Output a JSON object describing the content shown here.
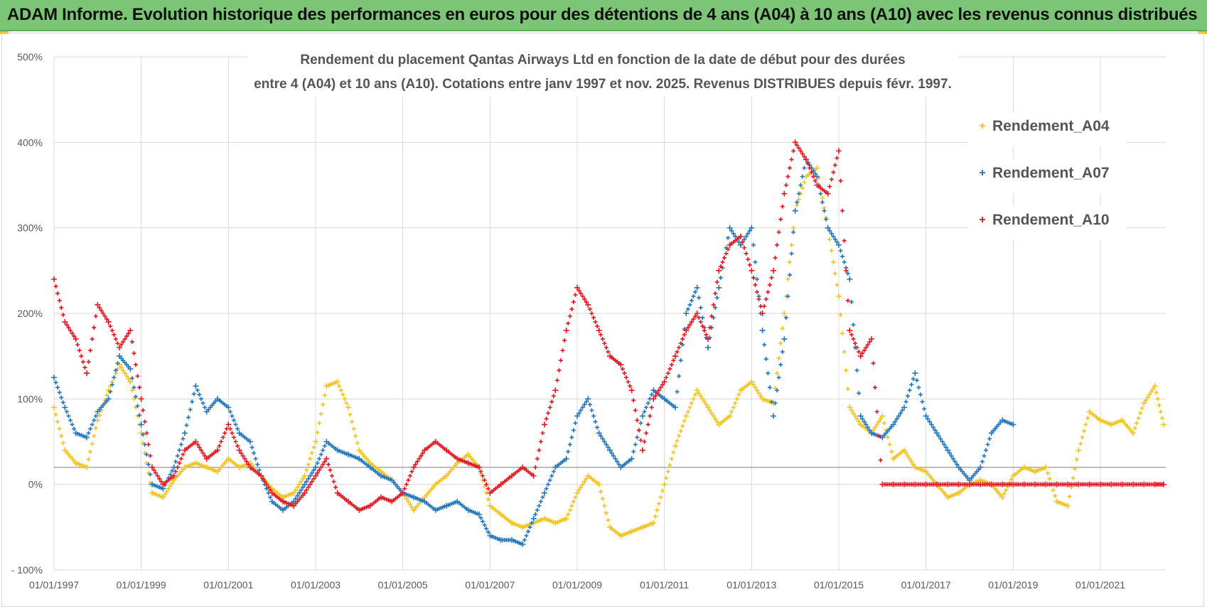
{
  "banner": {
    "title": "ADAM Informe. Evolution historique des performances en euros pour des détentions de 4 ans (A04) à 10 ans (A10) avec les revenus connus distribués"
  },
  "chart_data": {
    "type": "scatter",
    "title_line1": "Rendement du placement Qantas Airways Ltd en fonction de la date de début pour des durées",
    "title_line2": "entre 4 (A04) et 10 ans (A10). Cotations entre janv 1997 et nov. 2025. Revenus DISTRIBUES depuis févr. 1997.",
    "ylim": [
      -100,
      500
    ],
    "yticks": [
      -100,
      0,
      100,
      200,
      300,
      400,
      500
    ],
    "ytick_labels": [
      "- 100%",
      "0%",
      "100%",
      "200%",
      "300%",
      "400%",
      "500%"
    ],
    "xlim": [
      1997.0,
      2022.5
    ],
    "xticks": [
      1997,
      1999,
      2001,
      2003,
      2005,
      2007,
      2009,
      2011,
      2013,
      2015,
      2017,
      2019,
      2021
    ],
    "xtick_labels": [
      "01/01/1997",
      "01/01/1999",
      "01/01/2001",
      "01/01/2003",
      "01/01/2005",
      "01/01/2007",
      "01/01/2009",
      "01/01/2011",
      "01/01/2013",
      "01/01/2015",
      "01/01/2017",
      "01/01/2019",
      "01/01/2021"
    ],
    "reference_line": 20,
    "grid": "both",
    "legend_position": "top-right",
    "series": [
      {
        "name": "Rendement_A04",
        "color": "#f5c21b",
        "x": [
          1997.0,
          1997.25,
          1997.5,
          1997.75,
          1998.0,
          1998.25,
          1998.5,
          1998.75,
          1999.0,
          1999.25,
          1999.5,
          1999.75,
          2000.0,
          2000.25,
          2000.5,
          2000.75,
          2001.0,
          2001.25,
          2001.5,
          2001.75,
          2002.0,
          2002.25,
          2002.5,
          2002.75,
          2003.0,
          2003.25,
          2003.5,
          2003.75,
          2004.0,
          2004.25,
          2004.5,
          2004.75,
          2005.0,
          2005.25,
          2005.5,
          2005.75,
          2006.0,
          2006.25,
          2006.5,
          2006.75,
          2007.0,
          2007.25,
          2007.5,
          2007.75,
          2008.0,
          2008.25,
          2008.5,
          2008.75,
          2009.0,
          2009.25,
          2009.5,
          2009.75,
          2010.0,
          2010.25,
          2010.5,
          2010.75,
          2011.0,
          2011.25,
          2011.5,
          2011.75,
          2012.0,
          2012.25,
          2012.5,
          2012.75,
          2013.0,
          2013.25,
          2013.5,
          2013.75,
          2014.0,
          2014.25,
          2014.5,
          2014.75,
          2015.0,
          2015.25,
          2015.5,
          2015.75,
          2016.0,
          2016.25,
          2016.5,
          2016.75,
          2017.0,
          2017.25,
          2017.5,
          2017.75,
          2018.0,
          2018.25,
          2018.5,
          2018.75,
          2019.0,
          2019.25,
          2019.5,
          2019.75,
          2020.0,
          2020.25,
          2020.5,
          2020.75,
          2021.0,
          2021.25,
          2021.5,
          2021.75,
          2022.0,
          2022.25,
          2022.45
        ],
        "y": [
          90,
          40,
          25,
          20,
          75,
          110,
          140,
          120,
          60,
          -10,
          -15,
          5,
          20,
          25,
          20,
          15,
          30,
          20,
          25,
          10,
          -5,
          -15,
          -10,
          10,
          50,
          115,
          120,
          90,
          40,
          25,
          15,
          5,
          -10,
          -30,
          -15,
          0,
          10,
          25,
          35,
          20,
          -25,
          -35,
          -45,
          -50,
          -45,
          -40,
          -45,
          -40,
          -10,
          10,
          0,
          -50,
          -60,
          -55,
          -50,
          -45,
          0,
          45,
          80,
          110,
          90,
          70,
          80,
          110,
          120,
          100,
          95,
          200,
          320,
          360,
          370,
          300,
          220,
          90,
          70,
          60,
          80,
          30,
          40,
          20,
          15,
          0,
          -15,
          -10,
          0,
          5,
          0,
          -15,
          10,
          20,
          15,
          20,
          -20,
          -25,
          40,
          85,
          75,
          70,
          75,
          60,
          95,
          115,
          70
        ]
      },
      {
        "name": "Rendement_A07",
        "color": "#1f74bf",
        "x": [
          1997.0,
          1997.25,
          1997.5,
          1997.75,
          1998.0,
          1998.25,
          1998.5,
          1998.75,
          1999.0,
          1999.25,
          1999.5,
          1999.75,
          2000.0,
          2000.25,
          2000.5,
          2000.75,
          2001.0,
          2001.25,
          2001.5,
          2001.75,
          2002.0,
          2002.25,
          2002.5,
          2002.75,
          2003.0,
          2003.25,
          2003.5,
          2003.75,
          2004.0,
          2004.25,
          2004.5,
          2004.75,
          2005.0,
          2005.25,
          2005.5,
          2005.75,
          2006.0,
          2006.25,
          2006.5,
          2006.75,
          2007.0,
          2007.25,
          2007.5,
          2007.75,
          2008.0,
          2008.25,
          2008.5,
          2008.75,
          2009.0,
          2009.25,
          2009.5,
          2009.75,
          2010.0,
          2010.25,
          2010.5,
          2010.75,
          2011.0,
          2011.25,
          2011.5,
          2011.75,
          2012.0,
          2012.25,
          2012.5,
          2012.75,
          2013.0,
          2013.25,
          2013.5,
          2013.75,
          2014.0,
          2014.25,
          2014.5,
          2014.75,
          2015.0,
          2015.25,
          2015.5,
          2015.75,
          2016.0,
          2016.25,
          2016.5,
          2016.75,
          2017.0,
          2017.25,
          2017.5,
          2017.75,
          2018.0,
          2018.25,
          2018.5,
          2018.75,
          2019.0
        ],
        "y": [
          125,
          90,
          60,
          55,
          85,
          100,
          150,
          135,
          70,
          0,
          -5,
          20,
          60,
          115,
          85,
          100,
          90,
          60,
          50,
          10,
          -20,
          -30,
          -20,
          0,
          20,
          50,
          40,
          35,
          30,
          20,
          10,
          5,
          -10,
          -15,
          -20,
          -30,
          -25,
          -20,
          -30,
          -35,
          -60,
          -65,
          -65,
          -70,
          -40,
          -10,
          20,
          30,
          80,
          100,
          60,
          40,
          20,
          30,
          80,
          110,
          100,
          90,
          200,
          230,
          160,
          230,
          300,
          280,
          300,
          180,
          80,
          170,
          320,
          380,
          360,
          300,
          280,
          240,
          80,
          60,
          55,
          70,
          90,
          130,
          80,
          60,
          40,
          20,
          5,
          20,
          60,
          75,
          70
        ]
      },
      {
        "name": "Rendement_A10",
        "color": "#e8121b",
        "x": [
          1997.0,
          1997.25,
          1997.5,
          1997.75,
          1998.0,
          1998.25,
          1998.5,
          1998.75,
          1999.0,
          1999.25,
          1999.5,
          1999.75,
          2000.0,
          2000.25,
          2000.5,
          2000.75,
          2001.0,
          2001.25,
          2001.5,
          2001.75,
          2002.0,
          2002.25,
          2002.5,
          2002.75,
          2003.0,
          2003.25,
          2003.5,
          2003.75,
          2004.0,
          2004.25,
          2004.5,
          2004.75,
          2005.0,
          2005.25,
          2005.5,
          2005.75,
          2006.0,
          2006.25,
          2006.5,
          2006.75,
          2007.0,
          2007.25,
          2007.5,
          2007.75,
          2008.0,
          2008.25,
          2008.5,
          2008.75,
          2009.0,
          2009.25,
          2009.5,
          2009.75,
          2010.0,
          2010.25,
          2010.5,
          2010.75,
          2011.0,
          2011.25,
          2011.5,
          2011.75,
          2012.0,
          2012.25,
          2012.5,
          2012.75,
          2013.0,
          2013.25,
          2013.5,
          2013.75,
          2014.0,
          2014.25,
          2014.5,
          2014.75,
          2015.0,
          2015.25,
          2015.5,
          2015.75,
          2016.0,
          2016.25,
          2016.5,
          2016.75,
          2017.0,
          2017.25,
          2017.5,
          2017.75,
          2018.0,
          2018.25,
          2018.5,
          2018.75,
          2019.0,
          2019.25,
          2019.5,
          2019.75,
          2020.0,
          2020.25,
          2020.5,
          2020.75,
          2021.0,
          2021.25,
          2021.5,
          2021.75,
          2022.0,
          2022.25,
          2022.45
        ],
        "y": [
          240,
          190,
          170,
          130,
          210,
          190,
          160,
          180,
          100,
          20,
          0,
          10,
          40,
          50,
          30,
          40,
          70,
          40,
          20,
          10,
          -10,
          -20,
          -25,
          -10,
          10,
          30,
          -10,
          -20,
          -30,
          -25,
          -15,
          -20,
          -10,
          20,
          40,
          50,
          40,
          30,
          25,
          20,
          -10,
          0,
          10,
          20,
          10,
          70,
          110,
          180,
          230,
          210,
          180,
          150,
          140,
          110,
          40,
          100,
          120,
          150,
          180,
          200,
          170,
          250,
          280,
          290,
          250,
          200,
          250,
          340,
          400,
          380,
          350,
          340,
          390,
          180,
          150,
          170,
          0,
          0,
          0,
          0,
          0,
          0,
          0,
          0,
          0,
          0,
          0,
          0,
          0,
          0,
          0,
          0,
          0,
          0,
          0,
          0,
          0,
          0,
          0,
          0,
          0,
          0,
          0
        ]
      }
    ]
  }
}
